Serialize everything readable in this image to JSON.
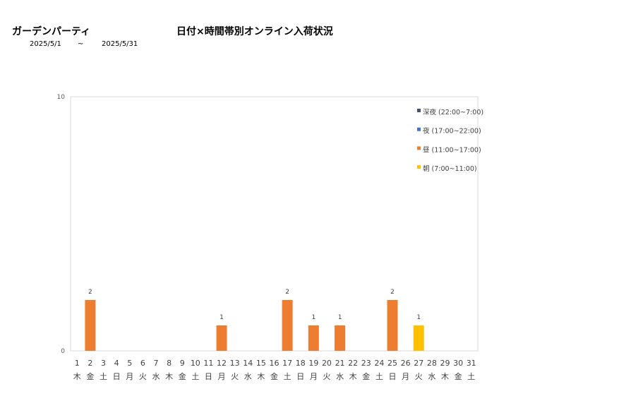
{
  "header": {
    "shop_name": "ガーデンパーティ",
    "chart_title": "日付×時間帯別オンライン入荷状況",
    "date_from": "2025/5/1",
    "date_sep": "~",
    "date_to": "2025/5/31"
  },
  "chart_data": {
    "type": "bar",
    "stacked": true,
    "ylim": [
      0,
      10
    ],
    "y_ticks": [
      "0",
      "10"
    ],
    "grid": false,
    "legend_position": "top-right",
    "categories": [
      "1",
      "2",
      "3",
      "4",
      "5",
      "6",
      "7",
      "8",
      "9",
      "10",
      "11",
      "12",
      "13",
      "14",
      "15",
      "16",
      "17",
      "18",
      "19",
      "20",
      "21",
      "22",
      "23",
      "24",
      "25",
      "26",
      "27",
      "28",
      "29",
      "30",
      "31"
    ],
    "weekdays": [
      "木",
      "金",
      "土",
      "日",
      "月",
      "火",
      "水",
      "木",
      "金",
      "土",
      "日",
      "月",
      "火",
      "水",
      "木",
      "金",
      "土",
      "日",
      "月",
      "火",
      "水",
      "木",
      "金",
      "土",
      "日",
      "月",
      "火",
      "水",
      "木",
      "金",
      "土"
    ],
    "series": [
      {
        "name": "深夜 (22:00~7:00)",
        "color": "#44546a",
        "values": [
          0,
          0,
          0,
          0,
          0,
          0,
          0,
          0,
          0,
          0,
          0,
          0,
          0,
          0,
          0,
          0,
          0,
          0,
          0,
          0,
          0,
          0,
          0,
          0,
          0,
          0,
          0,
          0,
          0,
          0,
          0
        ]
      },
      {
        "name": "夜 (17:00~22:00)",
        "color": "#4472c4",
        "values": [
          0,
          0,
          0,
          0,
          0,
          0,
          0,
          0,
          0,
          0,
          0,
          0,
          0,
          0,
          0,
          0,
          0,
          0,
          0,
          0,
          0,
          0,
          0,
          0,
          0,
          0,
          0,
          0,
          0,
          0,
          0
        ]
      },
      {
        "name": "昼 (11:00~17:00)",
        "color": "#ed7d31",
        "values": [
          0,
          2,
          0,
          0,
          0,
          0,
          0,
          0,
          0,
          0,
          0,
          1,
          0,
          0,
          0,
          0,
          2,
          0,
          1,
          0,
          1,
          0,
          0,
          0,
          2,
          0,
          0,
          0,
          0,
          0,
          0
        ]
      },
      {
        "name": "朝 (7:00~11:00)",
        "color": "#ffc000",
        "values": [
          0,
          0,
          0,
          0,
          0,
          0,
          0,
          0,
          0,
          0,
          0,
          0,
          0,
          0,
          0,
          0,
          0,
          0,
          0,
          0,
          0,
          0,
          0,
          0,
          0,
          0,
          1,
          0,
          0,
          0,
          0
        ]
      }
    ],
    "legend_order": [
      0,
      1,
      2,
      3
    ]
  }
}
